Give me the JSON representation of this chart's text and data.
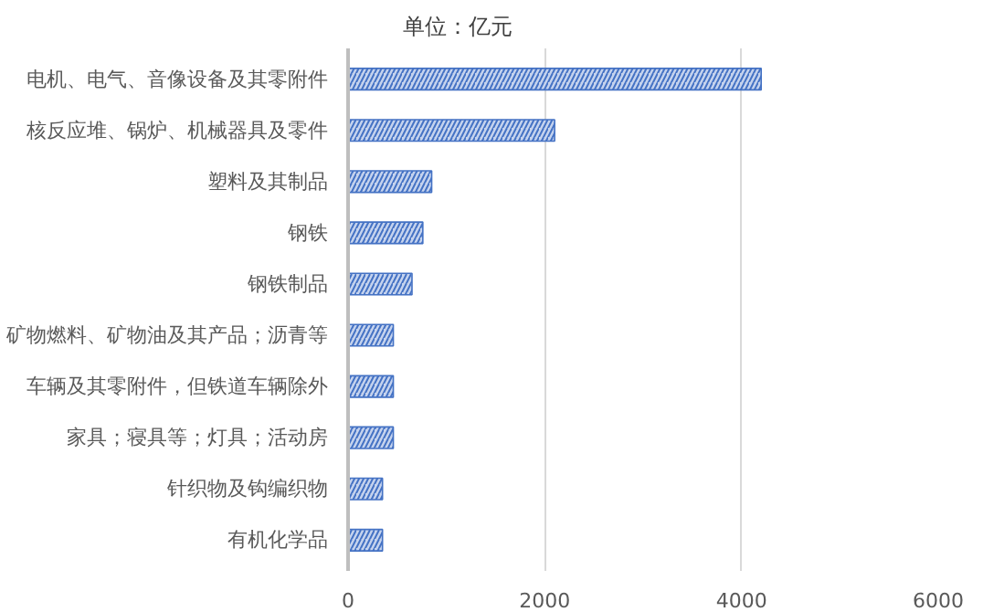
{
  "chart_data": {
    "type": "bar",
    "orientation": "horizontal",
    "title": "单位：亿元",
    "categories": [
      "电机、电气、音像设备及其零附件",
      "核反应堆、锅炉、机械器具及零件",
      "塑料及其制品",
      "钢铁",
      "钢铁制品",
      "矿物燃料、矿物油及其产品；沥青等",
      "车辆及其零附件，但铁道车辆除外",
      "家具；寝具等；灯具；活动房",
      "针织物及钩编织物",
      "有机化学品"
    ],
    "values": [
      4200,
      2100,
      850,
      760,
      650,
      460,
      460,
      460,
      350,
      350
    ],
    "color": "#4472c4",
    "xlim": [
      0,
      6000
    ],
    "xticks": [
      0,
      2000,
      4000,
      6000
    ],
    "grid": "x"
  }
}
